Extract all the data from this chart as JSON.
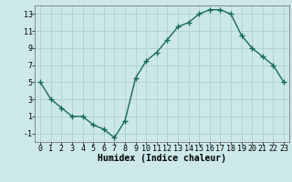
{
  "xlabel": "Humidex (Indice chaleur)",
  "x": [
    0,
    1,
    2,
    3,
    4,
    5,
    6,
    7,
    8,
    9,
    10,
    11,
    12,
    13,
    14,
    15,
    16,
    17,
    18,
    19,
    20,
    21,
    22,
    23
  ],
  "y": [
    5,
    3,
    2,
    1,
    1,
    0,
    -0.5,
    -1.5,
    0.5,
    5.5,
    7.5,
    8.5,
    10,
    11.5,
    12,
    13,
    13.5,
    13.5,
    13,
    10.5,
    9,
    8,
    7,
    5
  ],
  "line_color": "#1a6b5a",
  "bg_color": "#cce8e8",
  "grid_color": "#aacccc",
  "ylim": [
    -2,
    14
  ],
  "xlim": [
    -0.5,
    23.5
  ],
  "yticks": [
    -1,
    1,
    3,
    5,
    7,
    9,
    11,
    13
  ],
  "xticks": [
    0,
    1,
    2,
    3,
    4,
    5,
    6,
    7,
    8,
    9,
    10,
    11,
    12,
    13,
    14,
    15,
    16,
    17,
    18,
    19,
    20,
    21,
    22,
    23
  ],
  "marker": "+",
  "markersize": 4,
  "linewidth": 1.0,
  "tick_fontsize": 6.0,
  "xlabel_fontsize": 7.0
}
